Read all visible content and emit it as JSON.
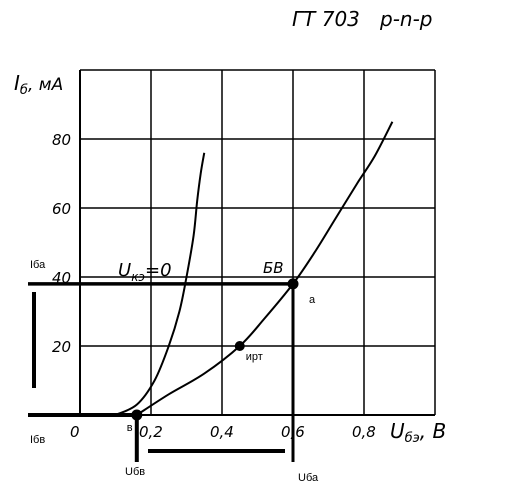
{
  "chart_data": {
    "type": "line",
    "title": "ГТ 703",
    "subtitle": "p-n-p",
    "ylabel": "I",
    "ylabel_sub": "б",
    "ylabel_unit": ", мА",
    "xlabel": "U",
    "xlabel_sub": "бэ",
    "xlabel_unit": ", В",
    "xlim": [
      0,
      1.0
    ],
    "ylim": [
      0,
      100
    ],
    "grid": true,
    "x_ticks": [
      {
        "value": 0,
        "label": "0"
      },
      {
        "value": 0.2,
        "label": "0,2"
      },
      {
        "value": 0.4,
        "label": "0,4"
      },
      {
        "value": 0.6,
        "label": "0,6"
      },
      {
        "value": 0.8,
        "label": "0,8"
      }
    ],
    "y_ticks": [
      {
        "value": 20,
        "label": "20"
      },
      {
        "value": 40,
        "label": "40"
      },
      {
        "value": 60,
        "label": "60"
      },
      {
        "value": 80,
        "label": "80"
      }
    ],
    "curve_label": {
      "text": "U",
      "sub": "кэ",
      "suffix": "=0"
    },
    "series": [
      {
        "x": [
          0.1,
          0.16,
          0.21,
          0.25,
          0.28,
          0.3,
          0.32,
          0.33,
          0.34,
          0.35
        ],
        "y": [
          0,
          3,
          10,
          20,
          30,
          40,
          52,
          62,
          70,
          76
        ]
      },
      {
        "x": [
          0.16,
          0.25,
          0.35,
          0.45,
          0.52,
          0.6,
          0.66,
          0.72,
          0.78,
          0.83,
          0.88
        ],
        "y": [
          0,
          6,
          12,
          20,
          28,
          38,
          47,
          57,
          67,
          75,
          85
        ]
      }
    ],
    "points": [
      {
        "label": "a",
        "extra": "БВ",
        "x": 0.6,
        "y": 38
      },
      {
        "label": "ирт",
        "x": 0.45,
        "y": 20
      },
      {
        "label": "в",
        "x": 0.16,
        "y": 0
      }
    ],
    "annotations": {
      "iba": "Iба",
      "ibv": "Iбв",
      "ubv": "Uбв",
      "uba": "Uба"
    }
  }
}
